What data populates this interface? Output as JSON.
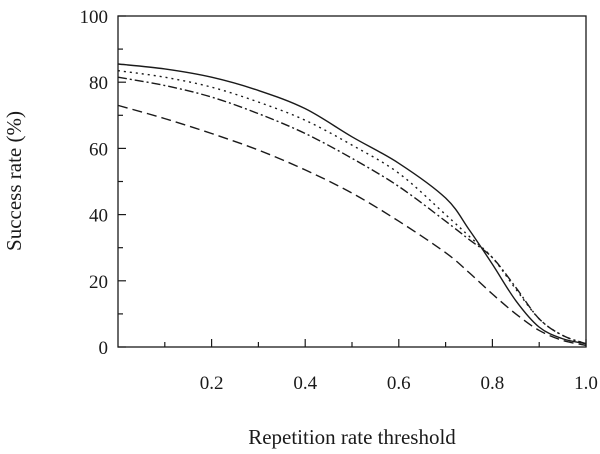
{
  "chart_data": {
    "type": "line",
    "title": "",
    "xlabel": "Repetition rate threshold",
    "ylabel": "Success rate (%)",
    "xlim": [
      0,
      1.0
    ],
    "ylim": [
      0,
      100
    ],
    "grid": false,
    "x_ticks": [
      0.1,
      0.2,
      0.3,
      0.4,
      0.5,
      0.6,
      0.7,
      0.8,
      0.9,
      1.0
    ],
    "x_tick_labels": [
      "",
      "0.2",
      "",
      "0.4",
      "",
      "0.6",
      "",
      "0.8",
      "",
      "1.0"
    ],
    "y_ticks": [
      0,
      10,
      20,
      30,
      40,
      50,
      60,
      70,
      80,
      90,
      100
    ],
    "y_tick_labels": [
      "0",
      "",
      "20",
      "",
      "40",
      "",
      "60",
      "",
      "80",
      "",
      "100"
    ],
    "series": [
      {
        "style": "solid",
        "x": [
          0.0,
          0.1,
          0.2,
          0.3,
          0.4,
          0.5,
          0.6,
          0.7,
          0.75,
          0.8,
          0.85,
          0.9,
          0.95,
          1.0
        ],
        "y": [
          85.5,
          84.0,
          81.5,
          77.5,
          72.0,
          63.5,
          55.5,
          45.0,
          35.5,
          25.0,
          14.0,
          6.0,
          2.5,
          1.0
        ]
      },
      {
        "style": "dotted",
        "x": [
          0.0,
          0.1,
          0.2,
          0.3,
          0.4,
          0.5,
          0.6,
          0.7,
          0.75,
          0.8,
          0.85,
          0.9,
          0.95,
          1.0
        ],
        "y": [
          83.5,
          81.5,
          78.5,
          74.0,
          68.5,
          61.0,
          52.5,
          40.0,
          33.5,
          27.0,
          17.5,
          8.5,
          3.5,
          1.0
        ]
      },
      {
        "style": "dash-dot",
        "x": [
          0.0,
          0.1,
          0.2,
          0.3,
          0.4,
          0.5,
          0.6,
          0.7,
          0.75,
          0.8,
          0.85,
          0.9,
          0.95,
          1.0
        ],
        "y": [
          81.5,
          79.0,
          75.5,
          70.5,
          64.5,
          57.0,
          48.5,
          38.0,
          32.5,
          27.0,
          18.0,
          8.5,
          3.5,
          1.0
        ]
      },
      {
        "style": "dashed",
        "x": [
          0.0,
          0.1,
          0.2,
          0.3,
          0.4,
          0.5,
          0.6,
          0.7,
          0.75,
          0.8,
          0.85,
          0.9,
          0.95,
          1.0
        ],
        "y": [
          73.0,
          69.0,
          64.5,
          59.5,
          53.5,
          46.5,
          38.0,
          28.5,
          22.5,
          16.0,
          10.0,
          5.0,
          2.0,
          0.5
        ]
      }
    ]
  }
}
